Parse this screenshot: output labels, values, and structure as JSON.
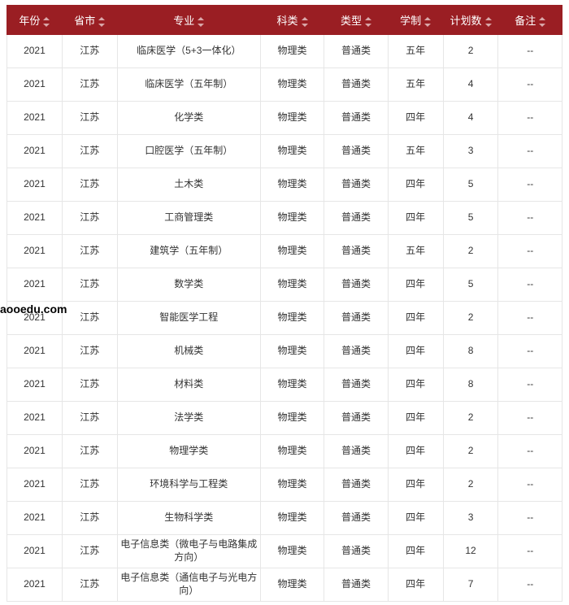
{
  "watermark": "aooedu.com",
  "table": {
    "header_bg": "#9a1e23",
    "header_fg": "#ffffff",
    "border_color": "#e6e6e6",
    "cell_fg": "#333333",
    "header_fontsize": 13,
    "cell_fontsize": 12,
    "columns": [
      {
        "key": "year",
        "label": "年份",
        "width": 64,
        "sortable": true
      },
      {
        "key": "province",
        "label": "省市",
        "width": 64,
        "sortable": true
      },
      {
        "key": "major",
        "label": "专业",
        "width": 166,
        "sortable": true
      },
      {
        "key": "subject",
        "label": "科类",
        "width": 74,
        "sortable": true
      },
      {
        "key": "type",
        "label": "类型",
        "width": 74,
        "sortable": true
      },
      {
        "key": "duration",
        "label": "学制",
        "width": 64,
        "sortable": true
      },
      {
        "key": "plan",
        "label": "计划数",
        "width": 64,
        "sortable": true
      },
      {
        "key": "remark",
        "label": "备注",
        "width": 74,
        "sortable": true
      }
    ],
    "rows": [
      [
        "2021",
        "江苏",
        "临床医学（5+3一体化）",
        "物理类",
        "普通类",
        "五年",
        "2",
        "--"
      ],
      [
        "2021",
        "江苏",
        "临床医学（五年制）",
        "物理类",
        "普通类",
        "五年",
        "4",
        "--"
      ],
      [
        "2021",
        "江苏",
        "化学类",
        "物理类",
        "普通类",
        "四年",
        "4",
        "--"
      ],
      [
        "2021",
        "江苏",
        "口腔医学（五年制）",
        "物理类",
        "普通类",
        "五年",
        "3",
        "--"
      ],
      [
        "2021",
        "江苏",
        "土木类",
        "物理类",
        "普通类",
        "四年",
        "5",
        "--"
      ],
      [
        "2021",
        "江苏",
        "工商管理类",
        "物理类",
        "普通类",
        "四年",
        "5",
        "--"
      ],
      [
        "2021",
        "江苏",
        "建筑学（五年制）",
        "物理类",
        "普通类",
        "五年",
        "2",
        "--"
      ],
      [
        "2021",
        "江苏",
        "数学类",
        "物理类",
        "普通类",
        "四年",
        "5",
        "--"
      ],
      [
        "2021",
        "江苏",
        "智能医学工程",
        "物理类",
        "普通类",
        "四年",
        "2",
        "--"
      ],
      [
        "2021",
        "江苏",
        "机械类",
        "物理类",
        "普通类",
        "四年",
        "8",
        "--"
      ],
      [
        "2021",
        "江苏",
        "材料类",
        "物理类",
        "普通类",
        "四年",
        "8",
        "--"
      ],
      [
        "2021",
        "江苏",
        "法学类",
        "物理类",
        "普通类",
        "四年",
        "2",
        "--"
      ],
      [
        "2021",
        "江苏",
        "物理学类",
        "物理类",
        "普通类",
        "四年",
        "2",
        "--"
      ],
      [
        "2021",
        "江苏",
        "环境科学与工程类",
        "物理类",
        "普通类",
        "四年",
        "2",
        "--"
      ],
      [
        "2021",
        "江苏",
        "生物科学类",
        "物理类",
        "普通类",
        "四年",
        "3",
        "--"
      ],
      [
        "2021",
        "江苏",
        "电子信息类（微电子与电路集成方向）",
        "物理类",
        "普通类",
        "四年",
        "12",
        "--"
      ],
      [
        "2021",
        "江苏",
        "电子信息类（通信电子与光电方向）",
        "物理类",
        "普通类",
        "四年",
        "7",
        "--"
      ]
    ]
  }
}
